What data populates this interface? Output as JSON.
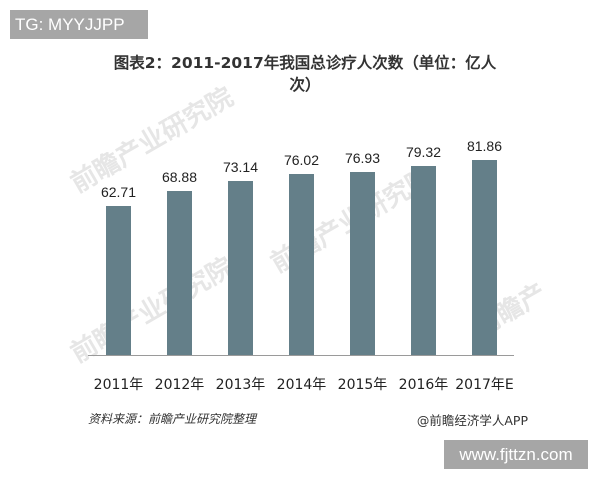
{
  "badge_top": "TG: MYYJJPP",
  "title": "图表2：2011-2017年我国总诊疗人次数（单位：亿人次）",
  "title_line1": "图表2：2011-2017年我国总诊疗人次数（单位：亿人",
  "title_line2": "次）",
  "source": "资料来源：前瞻产业研究院整理",
  "credit": "@前瞻经济学人APP",
  "badge_bottom": "www.fjttzn.com",
  "watermarks": [
    "前瞻产业研究院",
    "前瞻产业研究院",
    "前瞻产"
  ],
  "colors": {
    "bar": "#647f89",
    "axis": "#9a9a9a",
    "badge": "#a6a6a6"
  },
  "chart_data": {
    "type": "bar",
    "title": "图表2：2011-2017年我国总诊疗人次数（单位：亿人次）",
    "categories": [
      "2011年",
      "2012年",
      "2013年",
      "2014年",
      "2015年",
      "2016年",
      "2017年E"
    ],
    "values": [
      62.71,
      68.88,
      73.14,
      76.02,
      76.93,
      79.32,
      81.86
    ],
    "value_labels": [
      "62.71",
      "68.88",
      "73.14",
      "76.02",
      "76.93",
      "79.32",
      "81.86"
    ],
    "xlabel": "",
    "ylabel": "亿人次",
    "ylim": [
      0,
      90
    ],
    "grid": false,
    "legend": null,
    "data_labels": true
  }
}
